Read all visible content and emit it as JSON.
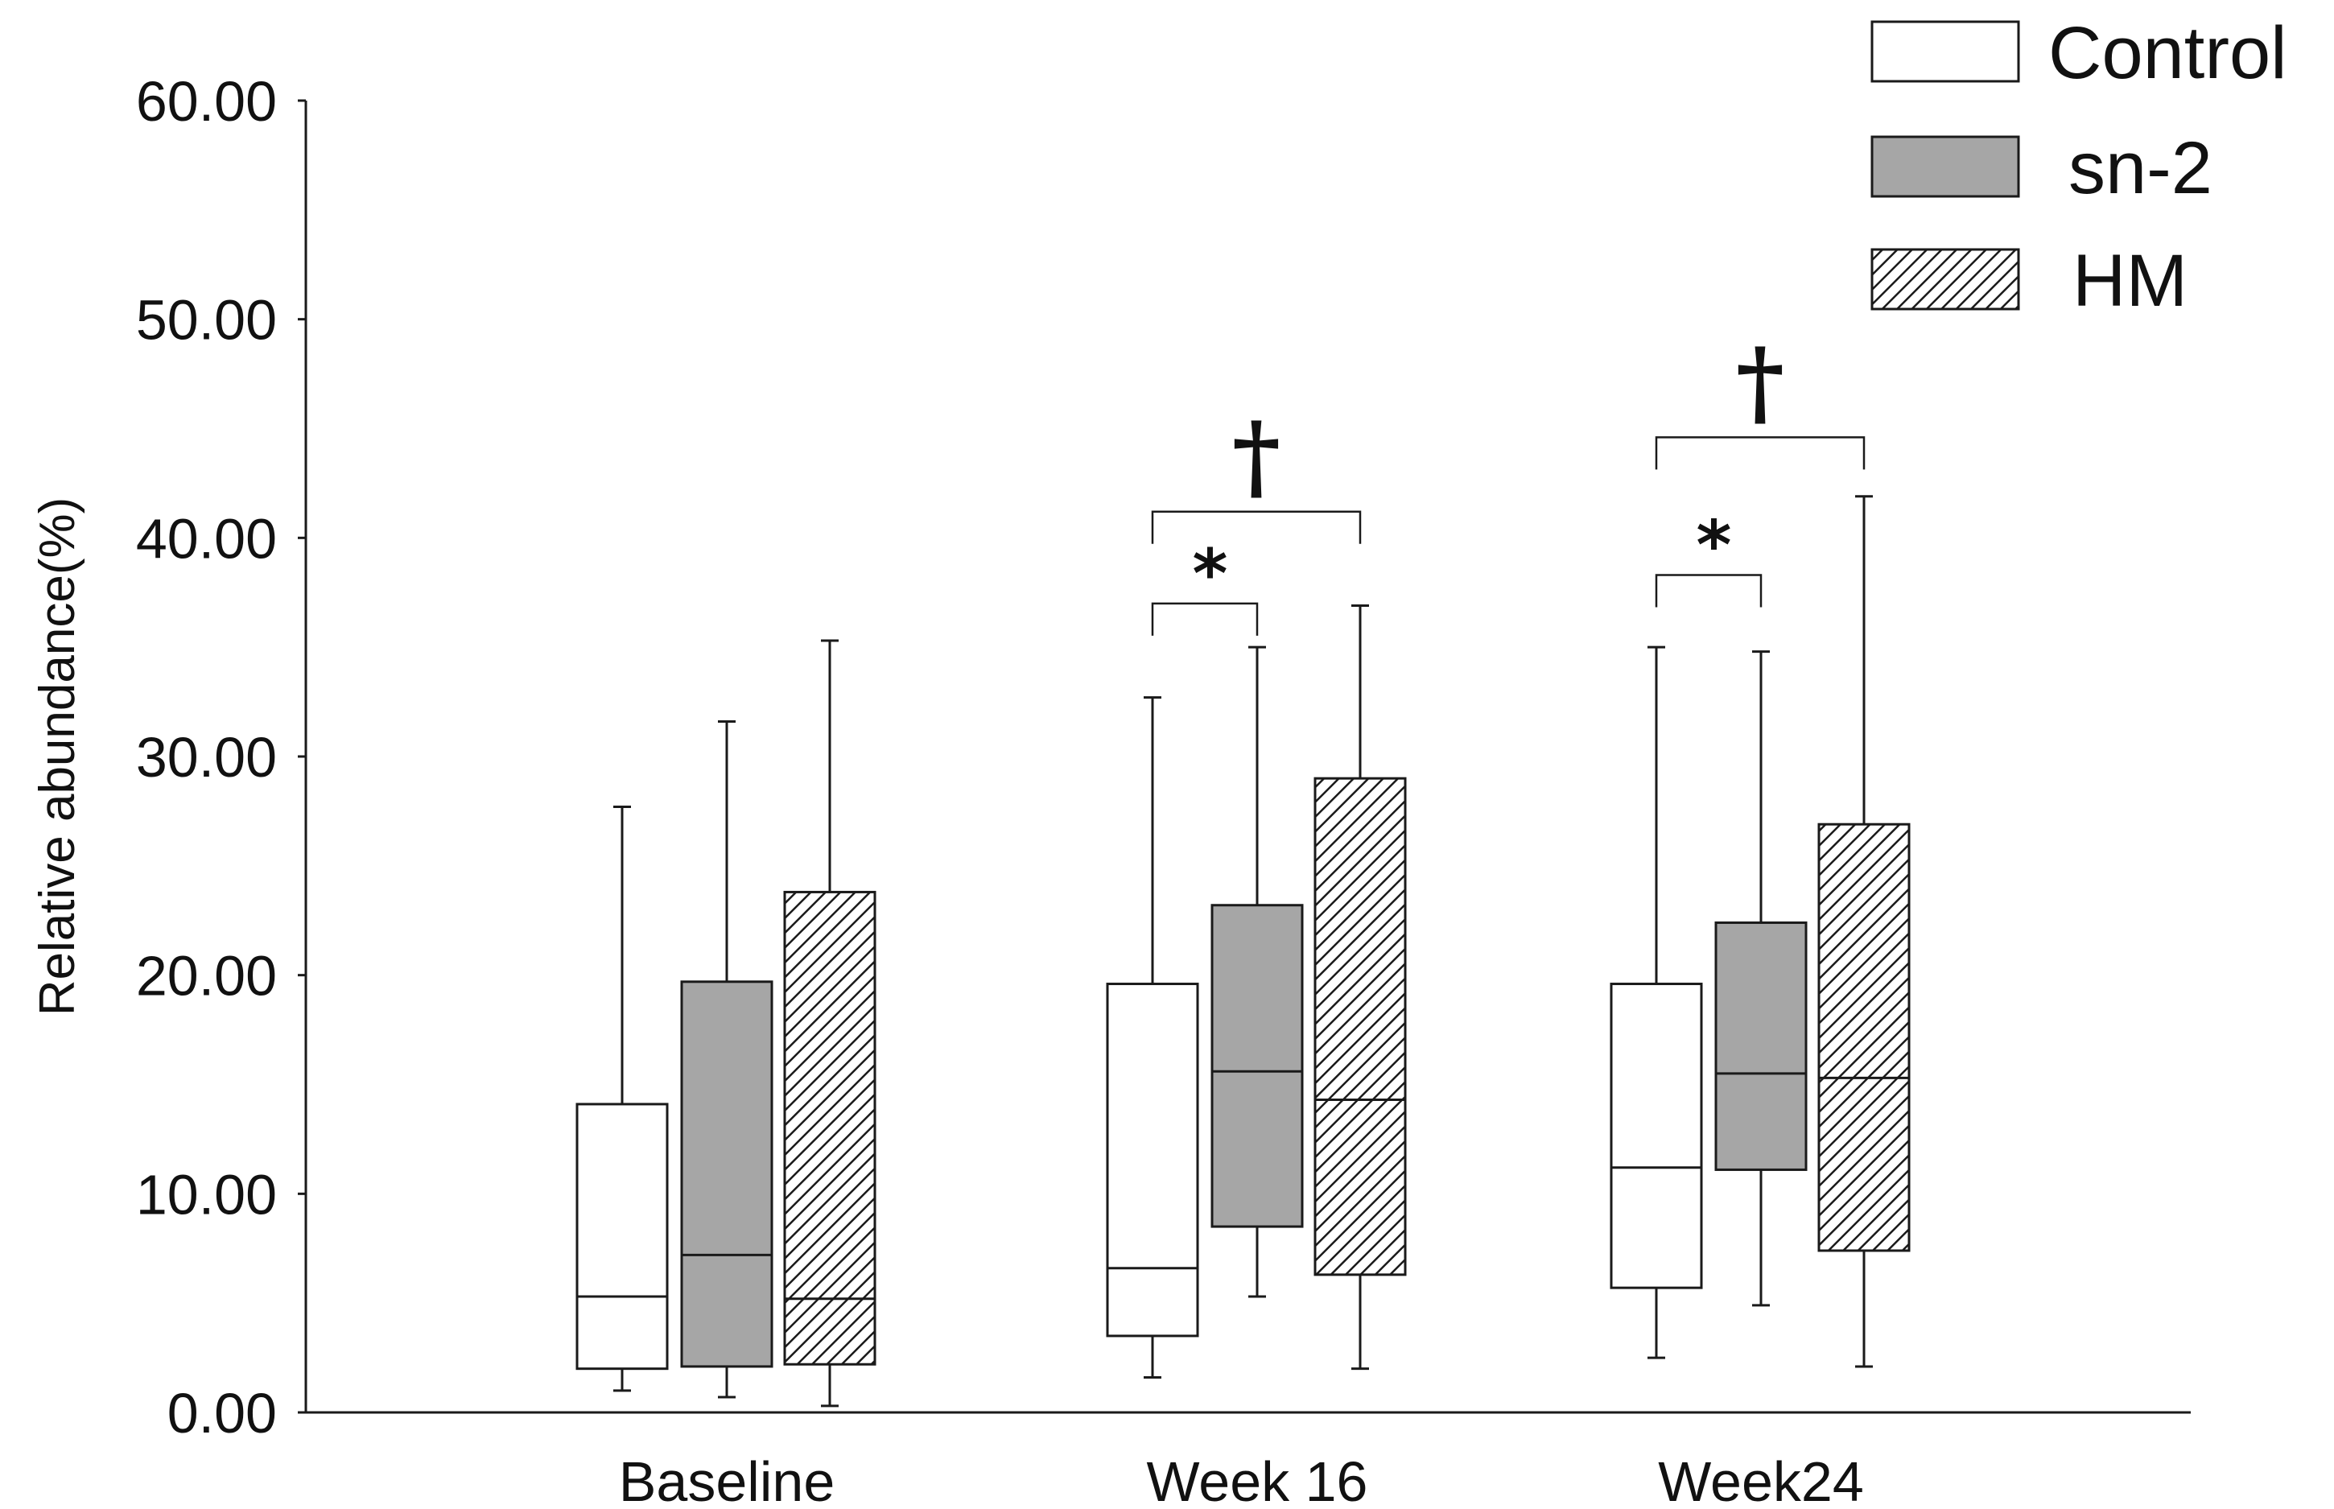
{
  "chart_data": {
    "type": "boxplot",
    "title": "",
    "xlabel": "",
    "ylabel": "Relative abundance(%)",
    "ylim": [
      0,
      60
    ],
    "yticks": [
      "0.00",
      "10.00",
      "20.00",
      "30.00",
      "40.00",
      "50.00",
      "60.00"
    ],
    "categories": [
      "Baseline",
      "Week 16",
      "Week24"
    ],
    "colors": {
      "Control": "#ffffff",
      "sn-2": "#a6a6a6",
      "HM": "hatch",
      "stroke": "#1a1a1a"
    },
    "series": [
      {
        "name": "Control",
        "fill": "white",
        "boxes": [
          {
            "min": 1.0,
            "q1": 2.0,
            "median": 5.3,
            "q3": 14.1,
            "max": 27.7
          },
          {
            "min": 1.6,
            "q1": 3.5,
            "median": 6.6,
            "q3": 19.6,
            "max": 32.7
          },
          {
            "min": 2.5,
            "q1": 5.7,
            "median": 11.2,
            "q3": 19.6,
            "max": 35.0
          }
        ]
      },
      {
        "name": "sn-2",
        "fill": "gray",
        "boxes": [
          {
            "min": 0.7,
            "q1": 2.1,
            "median": 7.2,
            "q3": 19.7,
            "max": 31.6
          },
          {
            "min": 5.3,
            "q1": 8.5,
            "median": 15.6,
            "q3": 23.2,
            "max": 35.0
          },
          {
            "min": 4.9,
            "q1": 11.1,
            "median": 15.5,
            "q3": 22.4,
            "max": 34.8
          }
        ]
      },
      {
        "name": "HM",
        "fill": "hatch",
        "boxes": [
          {
            "min": 0.3,
            "q1": 2.2,
            "median": 5.2,
            "q3": 23.8,
            "max": 35.3
          },
          {
            "min": 2.0,
            "q1": 6.3,
            "median": 14.3,
            "q3": 29.0,
            "max": 36.9
          },
          {
            "min": 2.1,
            "q1": 7.4,
            "median": 15.3,
            "q3": 26.9,
            "max": 41.9
          }
        ]
      }
    ],
    "legend": [
      "Control",
      "sn-2",
      "HM"
    ],
    "legend_position": "top-right",
    "annotations": [
      {
        "category": "Week 16",
        "symbol": "*",
        "from": "Control",
        "to": "sn-2",
        "level": 37.0
      },
      {
        "category": "Week 16",
        "symbol": "†",
        "from": "Control",
        "to": "HM",
        "level": 41.2
      },
      {
        "category": "Week24",
        "symbol": "*",
        "from": "Control",
        "to": "sn-2",
        "level": 38.3
      },
      {
        "category": "Week24",
        "symbol": "†",
        "from": "Control",
        "to": "HM",
        "level": 44.6
      }
    ]
  }
}
